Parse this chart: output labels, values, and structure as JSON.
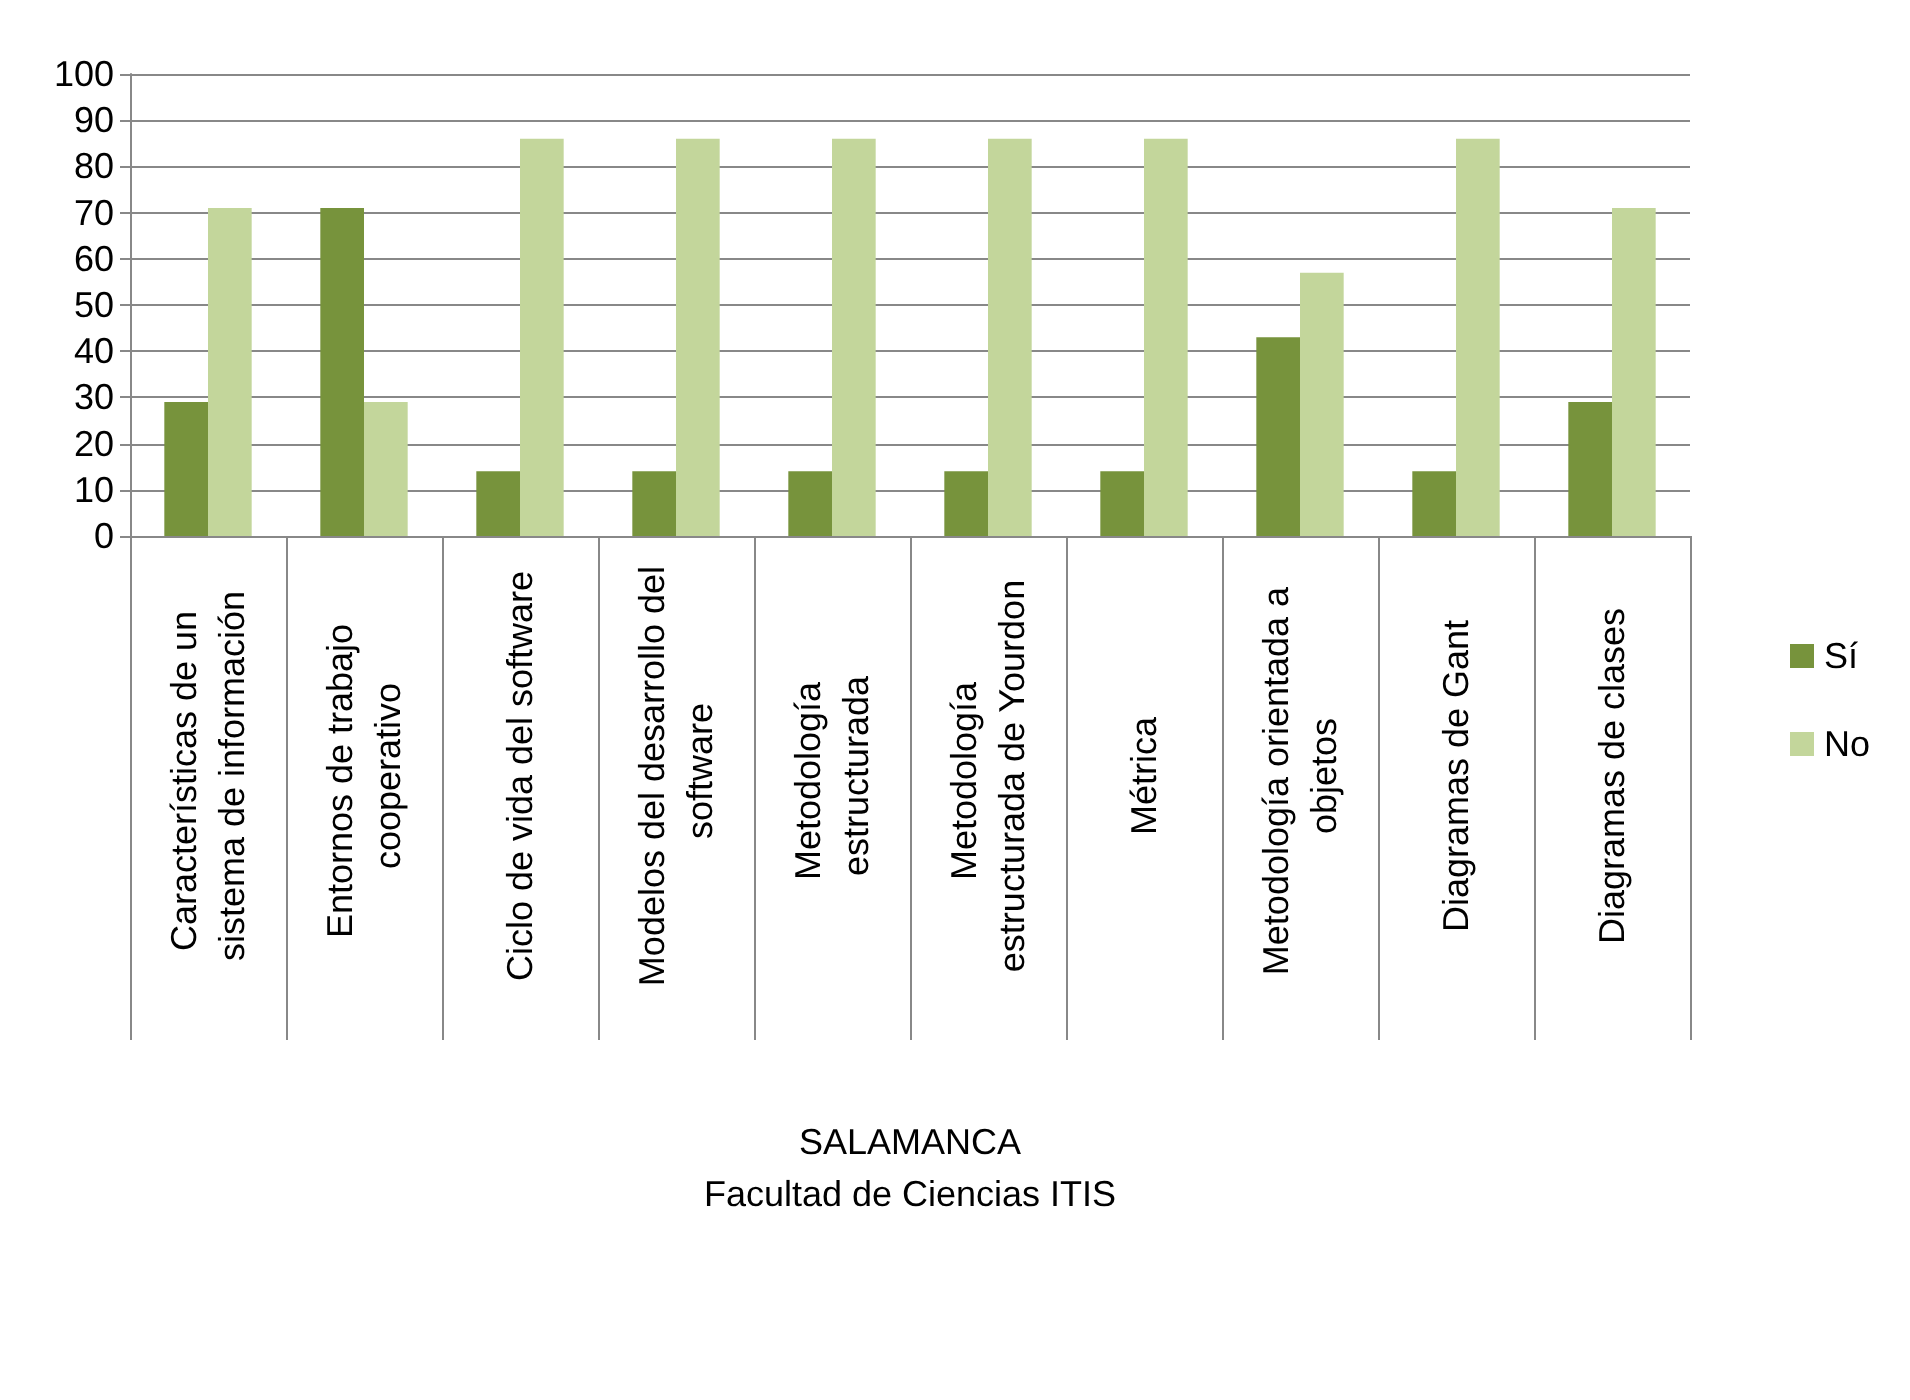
{
  "chart_data": {
    "type": "bar",
    "xlabel": "SALAMANCA\nFacultad de Ciencias ITIS",
    "categories": [
      "Características de un sistema de información",
      "Entornos de trabajo cooperativo",
      "Ciclo de vida del software",
      "Modelos del desarrollo del software",
      "Metodología estructurada",
      "Metodología estructurada de Yourdon",
      "Métrica",
      "Metodología orientada a objetos",
      "Diagramas de Gant",
      "Diagramas de clases"
    ],
    "series": [
      {
        "name": "Sí",
        "color": "#77933c",
        "values": [
          29,
          71,
          14,
          14,
          14,
          14,
          14,
          43,
          14,
          29
        ]
      },
      {
        "name": "No",
        "color": "#c3d69b",
        "values": [
          71,
          29,
          86,
          86,
          86,
          86,
          86,
          57,
          86,
          71
        ]
      }
    ],
    "ylim": [
      0,
      100
    ],
    "yticks": [
      0,
      10,
      20,
      30,
      40,
      50,
      60,
      70,
      80,
      90,
      100
    ],
    "grid": "y",
    "legend": "right"
  }
}
